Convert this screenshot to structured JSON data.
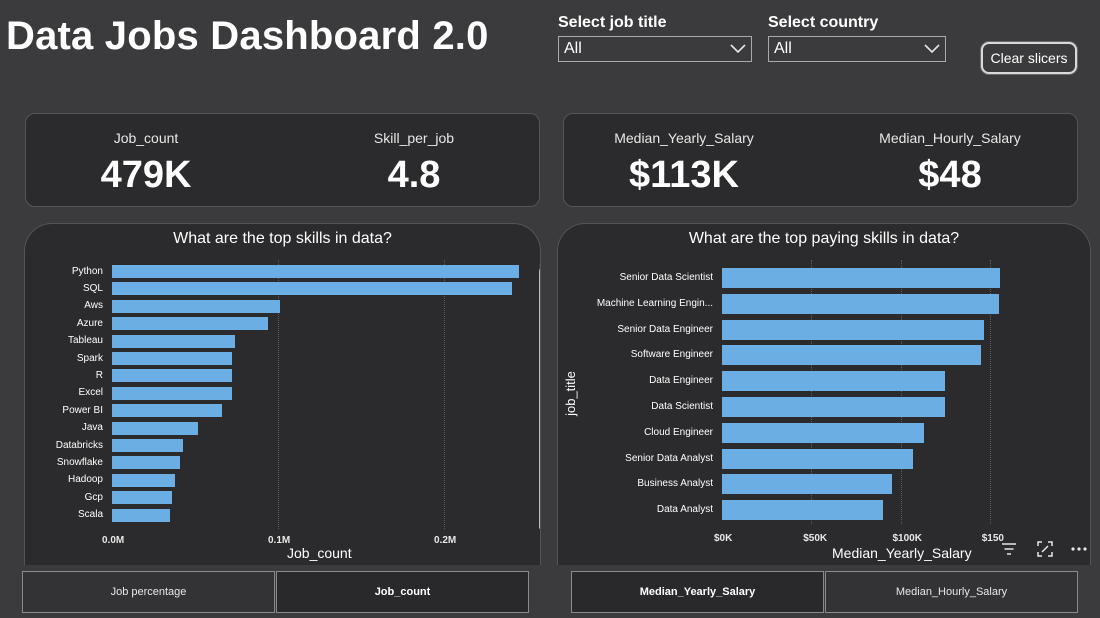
{
  "header": {
    "title": "Data Jobs Dashboard 2.0"
  },
  "slicers": {
    "job_title": {
      "label": "Select job title",
      "value": "All"
    },
    "country": {
      "label": "Select country",
      "value": "All"
    },
    "clear_label": "Clear slicers"
  },
  "kpis": {
    "job_count": {
      "label": "Job_count",
      "value": "479K"
    },
    "skill_per_job": {
      "label": "Skill_per_job",
      "value": "4.8"
    },
    "median_yearly_salary": {
      "label": "Median_Yearly_Salary",
      "value": "$113K"
    },
    "median_hourly_salary": {
      "label": "Median_Hourly_Salary",
      "value": "$48"
    }
  },
  "chart_data": [
    {
      "type": "bar",
      "orientation": "horizontal",
      "title": "What are the top skills in data?",
      "categories": [
        "Python",
        "SQL",
        "Aws",
        "Azure",
        "Tableau",
        "Spark",
        "R",
        "Excel",
        "Power BI",
        "Java",
        "Databricks",
        "Snowflake",
        "Hadoop",
        "Gcp",
        "Scala"
      ],
      "values": [
        245000,
        241000,
        101000,
        94000,
        74000,
        72000,
        72000,
        72000,
        66000,
        52000,
        43000,
        41000,
        38000,
        36000,
        35000
      ],
      "xlabel": "Job_count",
      "ylabel": "",
      "xticks": [
        "0.0M",
        "0.1M",
        "0.2M"
      ],
      "xtick_values": [
        0,
        100000,
        200000
      ],
      "xlim": [
        0,
        250000
      ],
      "grid": true
    },
    {
      "type": "bar",
      "orientation": "horizontal",
      "title": "What are the top paying skills in data?",
      "categories": [
        "Senior Data Scientist",
        "Machine Learning Engin...",
        "Senior Data Engineer",
        "Software Engineer",
        "Data Engineer",
        "Data Scientist",
        "Cloud Engineer",
        "Senior Data Analyst",
        "Business Analyst",
        "Data Analyst"
      ],
      "values": [
        155500,
        155000,
        147000,
        145000,
        125000,
        125000,
        113000,
        107000,
        95000,
        90000
      ],
      "xlabel": "Median_Yearly_Salary",
      "ylabel": "job_title",
      "xticks": [
        "$0K",
        "$50K",
        "$100K",
        "$150"
      ],
      "xtick_values": [
        0,
        50000,
        100000,
        150000
      ],
      "xlim": [
        0,
        200000
      ],
      "grid": true
    }
  ],
  "tabs": {
    "left": [
      {
        "label": "Job percentage",
        "active": false
      },
      {
        "label": "Job_count",
        "active": true
      }
    ],
    "right": [
      {
        "label": "Median_Yearly_Salary",
        "active": true
      },
      {
        "label": "Median_Hourly_Salary",
        "active": false
      }
    ]
  },
  "colors": {
    "bar": "#6aaee3",
    "background": "#3b3a3c",
    "card": "#2b2a2c"
  },
  "icons": {
    "filter": "filter-icon",
    "focus": "focus-mode-icon",
    "more": "more-options-icon"
  }
}
